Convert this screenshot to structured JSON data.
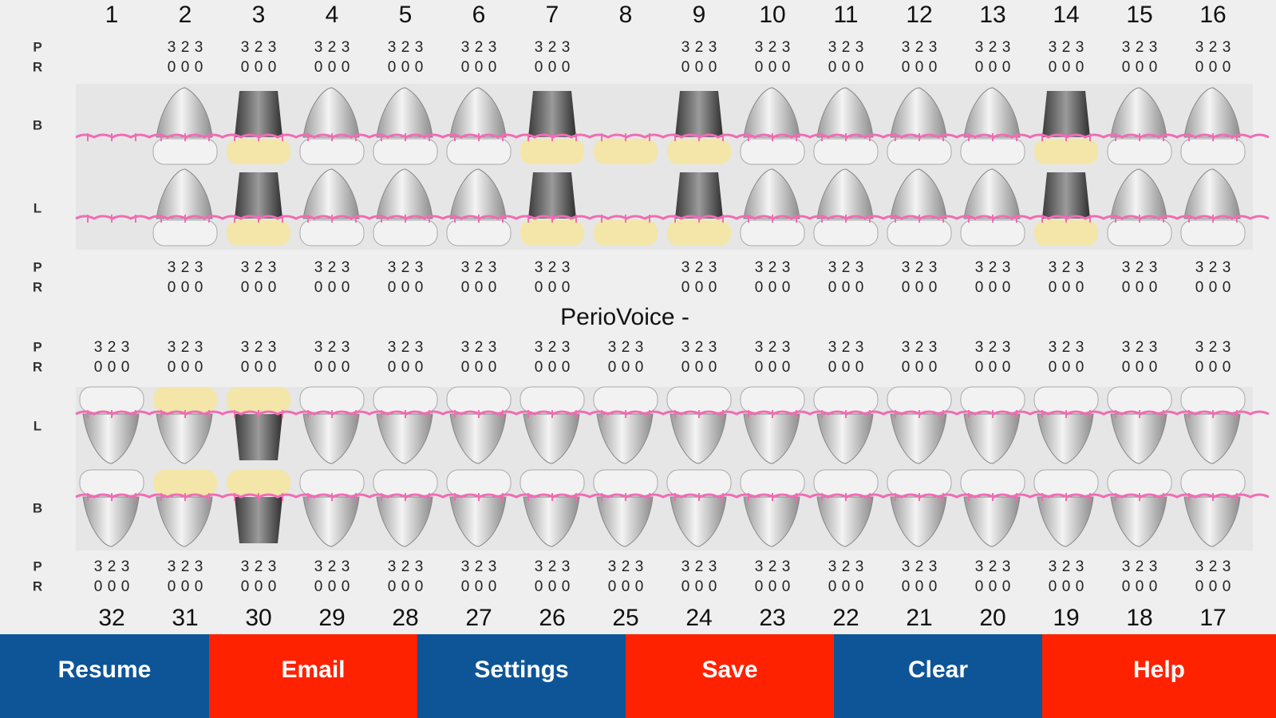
{
  "title": "PerioVoice -",
  "row_labels": {
    "probing": "P",
    "recession": "R",
    "buccal": "B",
    "lingual": "L"
  },
  "upper": {
    "tooth_numbers": [
      1,
      2,
      3,
      4,
      5,
      6,
      7,
      8,
      9,
      10,
      11,
      12,
      13,
      14,
      15,
      16
    ],
    "buccal": [
      null,
      {
        "probing": [
          3,
          2,
          3
        ],
        "recession": [
          0,
          0,
          0
        ]
      },
      {
        "probing": [
          3,
          2,
          3
        ],
        "recession": [
          0,
          0,
          0
        ]
      },
      {
        "probing": [
          3,
          2,
          3
        ],
        "recession": [
          0,
          0,
          0
        ]
      },
      {
        "probing": [
          3,
          2,
          3
        ],
        "recession": [
          0,
          0,
          0
        ]
      },
      {
        "probing": [
          3,
          2,
          3
        ],
        "recession": [
          0,
          0,
          0
        ]
      },
      {
        "probing": [
          3,
          2,
          3
        ],
        "recession": [
          0,
          0,
          0
        ]
      },
      null,
      {
        "probing": [
          3,
          2,
          3
        ],
        "recession": [
          0,
          0,
          0
        ]
      },
      {
        "probing": [
          3,
          2,
          3
        ],
        "recession": [
          0,
          0,
          0
        ]
      },
      {
        "probing": [
          3,
          2,
          3
        ],
        "recession": [
          0,
          0,
          0
        ]
      },
      {
        "probing": [
          3,
          2,
          3
        ],
        "recession": [
          0,
          0,
          0
        ]
      },
      {
        "probing": [
          3,
          2,
          3
        ],
        "recession": [
          0,
          0,
          0
        ]
      },
      {
        "probing": [
          3,
          2,
          3
        ],
        "recession": [
          0,
          0,
          0
        ]
      },
      {
        "probing": [
          3,
          2,
          3
        ],
        "recession": [
          0,
          0,
          0
        ]
      },
      {
        "probing": [
          3,
          2,
          3
        ],
        "recession": [
          0,
          0,
          0
        ]
      }
    ],
    "lingual": [
      null,
      {
        "probing": [
          3,
          2,
          3
        ],
        "recession": [
          0,
          0,
          0
        ]
      },
      {
        "probing": [
          3,
          2,
          3
        ],
        "recession": [
          0,
          0,
          0
        ]
      },
      {
        "probing": [
          3,
          2,
          3
        ],
        "recession": [
          0,
          0,
          0
        ]
      },
      {
        "probing": [
          3,
          2,
          3
        ],
        "recession": [
          0,
          0,
          0
        ]
      },
      {
        "probing": [
          3,
          2,
          3
        ],
        "recession": [
          0,
          0,
          0
        ]
      },
      {
        "probing": [
          3,
          2,
          3
        ],
        "recession": [
          0,
          0,
          0
        ]
      },
      null,
      {
        "probing": [
          3,
          2,
          3
        ],
        "recession": [
          0,
          0,
          0
        ]
      },
      {
        "probing": [
          3,
          2,
          3
        ],
        "recession": [
          0,
          0,
          0
        ]
      },
      {
        "probing": [
          3,
          2,
          3
        ],
        "recession": [
          0,
          0,
          0
        ]
      },
      {
        "probing": [
          3,
          2,
          3
        ],
        "recession": [
          0,
          0,
          0
        ]
      },
      {
        "probing": [
          3,
          2,
          3
        ],
        "recession": [
          0,
          0,
          0
        ]
      },
      {
        "probing": [
          3,
          2,
          3
        ],
        "recession": [
          0,
          0,
          0
        ]
      },
      {
        "probing": [
          3,
          2,
          3
        ],
        "recession": [
          0,
          0,
          0
        ]
      },
      {
        "probing": [
          3,
          2,
          3
        ],
        "recession": [
          0,
          0,
          0
        ]
      }
    ]
  },
  "lower": {
    "tooth_numbers": [
      32,
      31,
      30,
      29,
      28,
      27,
      26,
      25,
      24,
      23,
      22,
      21,
      20,
      19,
      18,
      17
    ],
    "lingual": [
      {
        "probing": [
          3,
          2,
          3
        ],
        "recession": [
          0,
          0,
          0
        ]
      },
      {
        "probing": [
          3,
          2,
          3
        ],
        "recession": [
          0,
          0,
          0
        ]
      },
      {
        "probing": [
          3,
          2,
          3
        ],
        "recession": [
          0,
          0,
          0
        ]
      },
      {
        "probing": [
          3,
          2,
          3
        ],
        "recession": [
          0,
          0,
          0
        ]
      },
      {
        "probing": [
          3,
          2,
          3
        ],
        "recession": [
          0,
          0,
          0
        ]
      },
      {
        "probing": [
          3,
          2,
          3
        ],
        "recession": [
          0,
          0,
          0
        ]
      },
      {
        "probing": [
          3,
          2,
          3
        ],
        "recession": [
          0,
          0,
          0
        ]
      },
      {
        "probing": [
          3,
          2,
          3
        ],
        "recession": [
          0,
          0,
          0
        ]
      },
      {
        "probing": [
          3,
          2,
          3
        ],
        "recession": [
          0,
          0,
          0
        ]
      },
      {
        "probing": [
          3,
          2,
          3
        ],
        "recession": [
          0,
          0,
          0
        ]
      },
      {
        "probing": [
          3,
          2,
          3
        ],
        "recession": [
          0,
          0,
          0
        ]
      },
      {
        "probing": [
          3,
          2,
          3
        ],
        "recession": [
          0,
          0,
          0
        ]
      },
      {
        "probing": [
          3,
          2,
          3
        ],
        "recession": [
          0,
          0,
          0
        ]
      },
      {
        "probing": [
          3,
          2,
          3
        ],
        "recession": [
          0,
          0,
          0
        ]
      },
      {
        "probing": [
          3,
          2,
          3
        ],
        "recession": [
          0,
          0,
          0
        ]
      },
      {
        "probing": [
          3,
          2,
          3
        ],
        "recession": [
          0,
          0,
          0
        ]
      }
    ],
    "buccal": [
      {
        "probing": [
          3,
          2,
          3
        ],
        "recession": [
          0,
          0,
          0
        ]
      },
      {
        "probing": [
          3,
          2,
          3
        ],
        "recession": [
          0,
          0,
          0
        ]
      },
      {
        "probing": [
          3,
          2,
          3
        ],
        "recession": [
          0,
          0,
          0
        ]
      },
      {
        "probing": [
          3,
          2,
          3
        ],
        "recession": [
          0,
          0,
          0
        ]
      },
      {
        "probing": [
          3,
          2,
          3
        ],
        "recession": [
          0,
          0,
          0
        ]
      },
      {
        "probing": [
          3,
          2,
          3
        ],
        "recession": [
          0,
          0,
          0
        ]
      },
      {
        "probing": [
          3,
          2,
          3
        ],
        "recession": [
          0,
          0,
          0
        ]
      },
      {
        "probing": [
          3,
          2,
          3
        ],
        "recession": [
          0,
          0,
          0
        ]
      },
      {
        "probing": [
          3,
          2,
          3
        ],
        "recession": [
          0,
          0,
          0
        ]
      },
      {
        "probing": [
          3,
          2,
          3
        ],
        "recession": [
          0,
          0,
          0
        ]
      },
      {
        "probing": [
          3,
          2,
          3
        ],
        "recession": [
          0,
          0,
          0
        ]
      },
      {
        "probing": [
          3,
          2,
          3
        ],
        "recession": [
          0,
          0,
          0
        ]
      },
      {
        "probing": [
          3,
          2,
          3
        ],
        "recession": [
          0,
          0,
          0
        ]
      },
      {
        "probing": [
          3,
          2,
          3
        ],
        "recession": [
          0,
          0,
          0
        ]
      },
      {
        "probing": [
          3,
          2,
          3
        ],
        "recession": [
          0,
          0,
          0
        ]
      },
      {
        "probing": [
          3,
          2,
          3
        ],
        "recession": [
          0,
          0,
          0
        ]
      }
    ]
  },
  "buttons": [
    "Resume",
    "Email",
    "Settings",
    "Save",
    "Clear",
    "Help"
  ]
}
